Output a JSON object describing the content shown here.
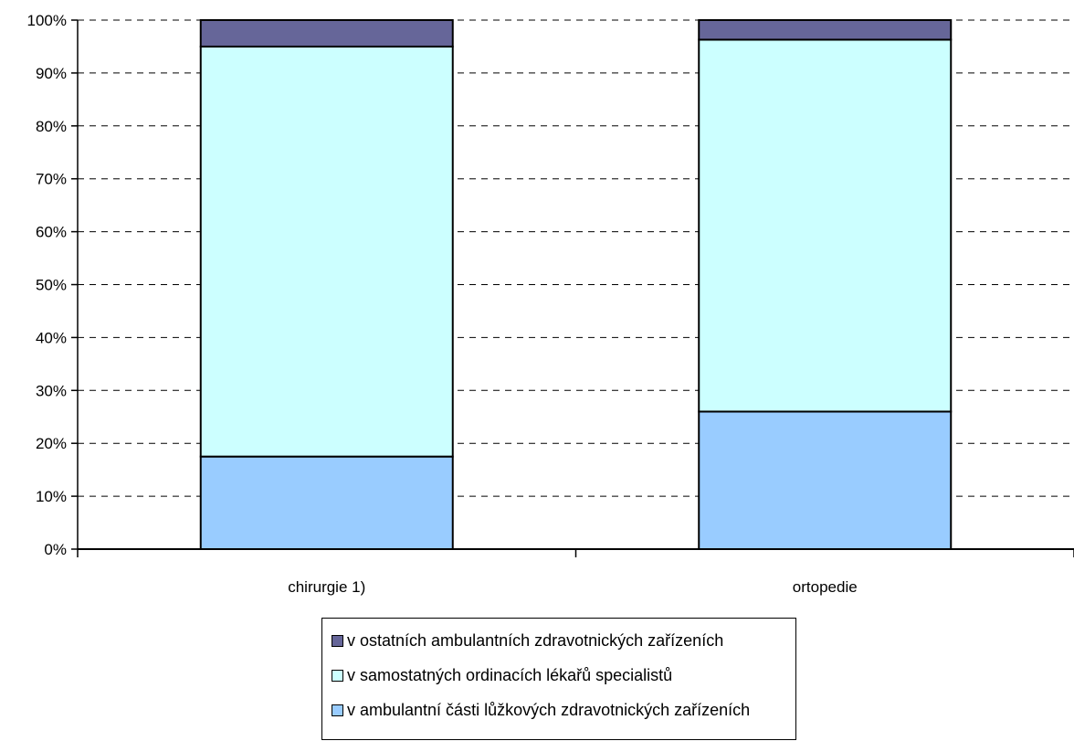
{
  "chart_data": {
    "type": "bar",
    "stacked": true,
    "categories": [
      "chirurgie 1)",
      "ortopedie"
    ],
    "series": [
      {
        "name": "v ambulantní části lůžkových zdravotnických zařízeních",
        "values": [
          17.5,
          26.0
        ],
        "color": "#99CCFF"
      },
      {
        "name": "v samostatných ordinacích lékařů specialistů",
        "values": [
          77.5,
          70.3
        ],
        "color": "#CCFFFF"
      },
      {
        "name": "v ostatních ambulantních zdravotnických zařízeních",
        "values": [
          5.0,
          3.7
        ],
        "color": "#666699"
      }
    ],
    "ylim": [
      0,
      100
    ],
    "yticks": [
      "0%",
      "10%",
      "20%",
      "30%",
      "40%",
      "50%",
      "60%",
      "70%",
      "80%",
      "90%",
      "100%"
    ],
    "grid": "dashed horizontal",
    "legend_position": "bottom",
    "legend_order": [
      2,
      1,
      0
    ]
  }
}
